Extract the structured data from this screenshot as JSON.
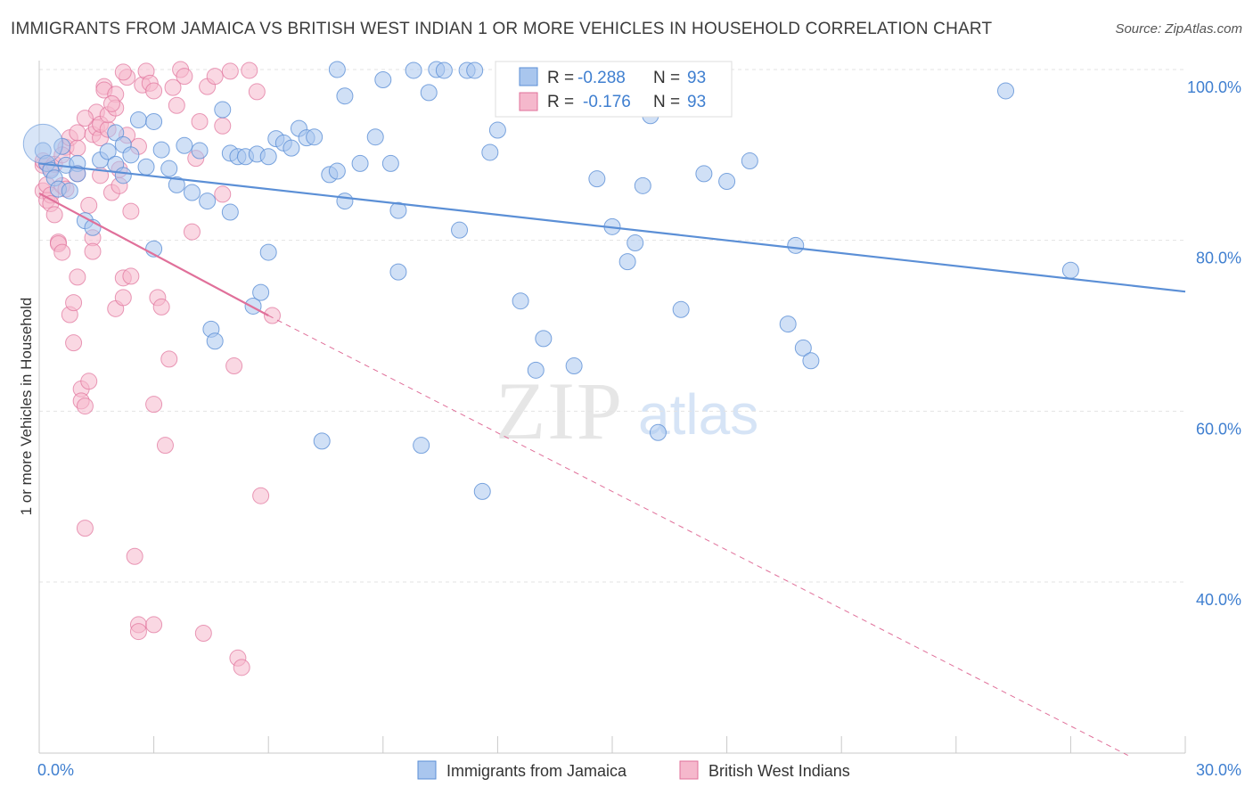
{
  "title": "IMMIGRANTS FROM JAMAICA VS BRITISH WEST INDIAN 1 OR MORE VEHICLES IN HOUSEHOLD CORRELATION CHART",
  "source": "Source: ZipAtlas.com",
  "watermark": {
    "zip": "ZIP",
    "atlas": "atlas"
  },
  "colors": {
    "blue": "#5b8fd6",
    "blue_fill": "#a9c6ee",
    "pink": "#e0709a",
    "pink_fill": "#f5b8cc",
    "tick": "#3f7fd0",
    "grid": "#e3e3e3"
  },
  "legend": {
    "rows": [
      {
        "r_label": "R = ",
        "r_value": "-0.288",
        "n_label": "N = ",
        "n_value": "93",
        "color": "#5b8fd6"
      },
      {
        "r_label": "R = ",
        "r_value": "-0.176",
        "n_label": "N = ",
        "n_value": "93",
        "color": "#e0709a"
      }
    ]
  },
  "bottom_legend": [
    "Immigrants from Jamaica",
    "British West Indians"
  ],
  "chart_data": {
    "type": "scatter",
    "title": "IMMIGRANTS FROM JAMAICA VS BRITISH WEST INDIAN 1 OR MORE VEHICLES IN HOUSEHOLD CORRELATION CHART",
    "xlabel": "",
    "ylabel": "1 or more Vehicles in Household",
    "xlim": [
      0,
      30
    ],
    "ylim": [
      20,
      101
    ],
    "x_tick_labels": [
      "0.0%",
      "30.0%"
    ],
    "y_ticks": [
      40,
      60,
      80,
      100
    ],
    "y_tick_labels": [
      "40.0%",
      "60.0%",
      "80.0%",
      "100.0%"
    ],
    "grid": true,
    "legend_position": "top-center",
    "series": [
      {
        "name": "Immigrants from Jamaica",
        "color": "#5b8fd6",
        "stats": {
          "R": -0.288,
          "N": 93
        },
        "trend": {
          "x": [
            0,
            30
          ],
          "y": [
            89.0,
            74.0
          ],
          "dashed_to": null
        },
        "points": [
          [
            0.1,
            90.5
          ],
          [
            0.2,
            89.0
          ],
          [
            0.3,
            88.2
          ],
          [
            0.4,
            87.3
          ],
          [
            0.5,
            86.0
          ],
          [
            0.6,
            91.0
          ],
          [
            0.7,
            88.8
          ],
          [
            0.8,
            85.8
          ],
          [
            1.0,
            89.0
          ],
          [
            1.0,
            87.8
          ],
          [
            1.2,
            82.3
          ],
          [
            1.4,
            81.5
          ],
          [
            1.6,
            89.4
          ],
          [
            1.8,
            90.4
          ],
          [
            2.0,
            92.6
          ],
          [
            2.0,
            88.9
          ],
          [
            2.2,
            91.2
          ],
          [
            2.2,
            87.6
          ],
          [
            2.4,
            90.0
          ],
          [
            2.6,
            94.1
          ],
          [
            2.8,
            88.6
          ],
          [
            3.0,
            79.0
          ],
          [
            3.0,
            93.9
          ],
          [
            3.2,
            90.6
          ],
          [
            3.4,
            88.4
          ],
          [
            3.6,
            86.5
          ],
          [
            3.8,
            91.1
          ],
          [
            4.0,
            85.6
          ],
          [
            4.2,
            90.5
          ],
          [
            4.4,
            84.6
          ],
          [
            4.5,
            69.6
          ],
          [
            4.6,
            68.2
          ],
          [
            4.8,
            95.3
          ],
          [
            5.0,
            90.2
          ],
          [
            5.0,
            83.3
          ],
          [
            5.2,
            89.8
          ],
          [
            5.4,
            89.8
          ],
          [
            5.6,
            72.3
          ],
          [
            5.7,
            90.1
          ],
          [
            5.8,
            73.9
          ],
          [
            6.0,
            89.8
          ],
          [
            6.0,
            78.6
          ],
          [
            6.2,
            91.9
          ],
          [
            6.4,
            91.4
          ],
          [
            6.6,
            90.8
          ],
          [
            6.8,
            93.1
          ],
          [
            7.0,
            92.0
          ],
          [
            7.2,
            92.1
          ],
          [
            7.4,
            56.5
          ],
          [
            7.6,
            87.7
          ],
          [
            7.8,
            88.1
          ],
          [
            7.8,
            100.0
          ],
          [
            8.0,
            96.9
          ],
          [
            8.0,
            84.6
          ],
          [
            8.4,
            89.0
          ],
          [
            8.8,
            92.1
          ],
          [
            9.0,
            98.8
          ],
          [
            9.2,
            89.0
          ],
          [
            9.4,
            83.5
          ],
          [
            9.4,
            76.3
          ],
          [
            9.8,
            99.9
          ],
          [
            10.0,
            56.0
          ],
          [
            10.2,
            97.3
          ],
          [
            10.4,
            100.0
          ],
          [
            10.6,
            99.9
          ],
          [
            11.0,
            81.2
          ],
          [
            11.2,
            99.9
          ],
          [
            11.4,
            99.9
          ],
          [
            11.6,
            50.6
          ],
          [
            11.8,
            90.3
          ],
          [
            12.0,
            92.9
          ],
          [
            12.2,
            99.7
          ],
          [
            12.6,
            72.9
          ],
          [
            13.0,
            64.8
          ],
          [
            13.2,
            68.5
          ],
          [
            14.0,
            65.3
          ],
          [
            14.6,
            87.2
          ],
          [
            15.0,
            81.6
          ],
          [
            15.4,
            77.5
          ],
          [
            15.6,
            79.7
          ],
          [
            15.8,
            86.4
          ],
          [
            16.0,
            94.6
          ],
          [
            16.2,
            57.5
          ],
          [
            16.8,
            71.9
          ],
          [
            17.4,
            87.8
          ],
          [
            18.0,
            86.9
          ],
          [
            18.6,
            89.3
          ],
          [
            19.6,
            70.2
          ],
          [
            19.8,
            79.4
          ],
          [
            20.0,
            67.4
          ],
          [
            20.2,
            65.9
          ],
          [
            25.3,
            97.5
          ],
          [
            27.0,
            76.5
          ]
        ]
      },
      {
        "name": "British West Indians",
        "color": "#e0709a",
        "stats": {
          "R": -0.176,
          "N": 93
        },
        "trend": {
          "x": [
            0,
            6.0
          ],
          "y": [
            85.5,
            71.2
          ],
          "dashed_to": [
            28.5,
            19.7
          ]
        },
        "points": [
          [
            0.1,
            88.8
          ],
          [
            0.1,
            85.8
          ],
          [
            0.1,
            89.3
          ],
          [
            0.2,
            84.7
          ],
          [
            0.2,
            86.5
          ],
          [
            0.2,
            89.0
          ],
          [
            0.3,
            88.4
          ],
          [
            0.3,
            85.3
          ],
          [
            0.3,
            84.3
          ],
          [
            0.4,
            83.0
          ],
          [
            0.4,
            88.9
          ],
          [
            0.5,
            79.8
          ],
          [
            0.5,
            79.6
          ],
          [
            0.6,
            78.6
          ],
          [
            0.6,
            86.4
          ],
          [
            0.7,
            90.9
          ],
          [
            0.7,
            86.0
          ],
          [
            0.8,
            92.0
          ],
          [
            0.8,
            71.3
          ],
          [
            0.9,
            72.7
          ],
          [
            0.9,
            68.0
          ],
          [
            1.0,
            75.7
          ],
          [
            1.0,
            90.8
          ],
          [
            1.0,
            87.8
          ],
          [
            1.0,
            92.6
          ],
          [
            1.1,
            62.6
          ],
          [
            1.1,
            61.2
          ],
          [
            1.2,
            60.6
          ],
          [
            1.2,
            46.3
          ],
          [
            1.3,
            63.5
          ],
          [
            1.3,
            84.1
          ],
          [
            1.4,
            80.3
          ],
          [
            1.4,
            78.7
          ],
          [
            1.4,
            92.4
          ],
          [
            1.5,
            95.0
          ],
          [
            1.5,
            93.2
          ],
          [
            1.6,
            92.0
          ],
          [
            1.6,
            93.6
          ],
          [
            1.6,
            87.6
          ],
          [
            1.7,
            98.0
          ],
          [
            1.7,
            97.6
          ],
          [
            1.8,
            93.0
          ],
          [
            1.8,
            94.7
          ],
          [
            1.9,
            85.6
          ],
          [
            2.0,
            97.1
          ],
          [
            2.0,
            95.5
          ],
          [
            2.0,
            72.0
          ],
          [
            2.1,
            88.3
          ],
          [
            2.1,
            86.4
          ],
          [
            2.2,
            75.6
          ],
          [
            2.2,
            73.3
          ],
          [
            2.3,
            92.3
          ],
          [
            2.3,
            99.1
          ],
          [
            2.4,
            83.4
          ],
          [
            2.4,
            75.8
          ],
          [
            2.5,
            43.0
          ],
          [
            2.6,
            35.0
          ],
          [
            2.6,
            34.2
          ],
          [
            2.7,
            98.2
          ],
          [
            2.8,
            99.8
          ],
          [
            2.9,
            98.4
          ],
          [
            3.0,
            97.5
          ],
          [
            3.0,
            60.8
          ],
          [
            3.0,
            35.0
          ],
          [
            3.1,
            73.3
          ],
          [
            3.2,
            72.2
          ],
          [
            3.3,
            56.0
          ],
          [
            3.4,
            66.1
          ],
          [
            3.6,
            95.8
          ],
          [
            3.7,
            100.0
          ],
          [
            3.8,
            99.2
          ],
          [
            4.0,
            81.0
          ],
          [
            4.1,
            89.6
          ],
          [
            4.3,
            34.0
          ],
          [
            4.4,
            98.0
          ],
          [
            4.6,
            99.2
          ],
          [
            4.8,
            93.4
          ],
          [
            4.8,
            85.4
          ],
          [
            5.0,
            99.8
          ],
          [
            5.1,
            65.3
          ],
          [
            5.2,
            31.1
          ],
          [
            5.3,
            30.0
          ],
          [
            5.5,
            99.9
          ],
          [
            5.7,
            97.4
          ],
          [
            5.8,
            50.1
          ],
          [
            6.1,
            71.2
          ],
          [
            0.6,
            90.0
          ],
          [
            1.2,
            94.3
          ],
          [
            1.9,
            96.0
          ],
          [
            2.2,
            99.7
          ],
          [
            2.6,
            91.0
          ],
          [
            3.5,
            97.9
          ],
          [
            4.2,
            93.9
          ]
        ]
      }
    ]
  }
}
